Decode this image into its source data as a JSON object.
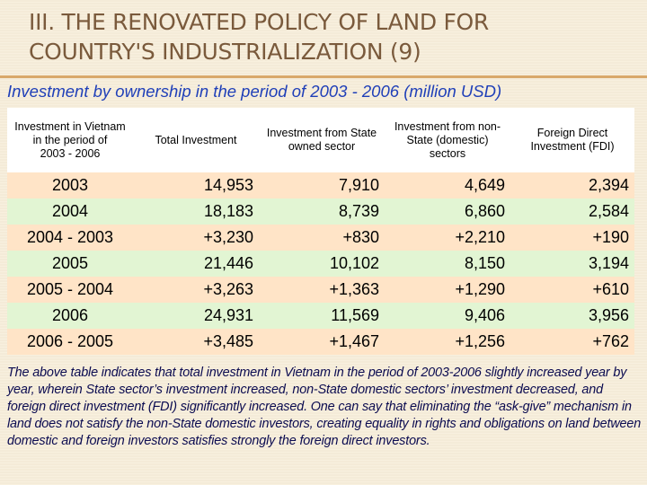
{
  "slide": {
    "title": "III. THE RENOVATED POLICY OF LAND FOR COUNTRY'S INDUSTRIALIZATION (9)",
    "subtitle": "Investment by ownership in the period of 2003 - 2006 (million USD)",
    "colors": {
      "title": "#7a5a3c",
      "rule": "#d9a86a",
      "subtitle": "#1f3fb8",
      "row_a": "#ffe4c7",
      "row_b": "#e2f5d3",
      "note": "#0b0b50"
    }
  },
  "table": {
    "headers": [
      {
        "line1": "Investment in Vietnam in the period of",
        "line2": "2003 - 2006"
      },
      {
        "line1": "Total Investment",
        "line2": ""
      },
      {
        "line1": "Investment from State owned sector",
        "line2": ""
      },
      {
        "line1": "Investment from non-State (domestic) sectors",
        "line2": ""
      },
      {
        "line1": "Foreign Direct Investment (FDI)",
        "line2": ""
      }
    ],
    "rows": [
      {
        "label": "2003",
        "total": "14,953",
        "state": "7,910",
        "nonstate": "4,649",
        "fdi": "2,394"
      },
      {
        "label": "2004",
        "total": "18,183",
        "state": "8,739",
        "nonstate": "6,860",
        "fdi": "2,584"
      },
      {
        "label": "2004 - 2003",
        "total": "+3,230",
        "state": "+830",
        "nonstate": "+2,210",
        "fdi": "+190"
      },
      {
        "label": "2005",
        "total": "21,446",
        "state": "10,102",
        "nonstate": "8,150",
        "fdi": "3,194"
      },
      {
        "label": "2005 - 2004",
        "total": "+3,263",
        "state": "+1,363",
        "nonstate": "+1,290",
        "fdi": "+610"
      },
      {
        "label": "2006",
        "total": "24,931",
        "state": "11,569",
        "nonstate": "9,406",
        "fdi": "3,956"
      },
      {
        "label": "2006 - 2005",
        "total": "+3,485",
        "state": "+1,467",
        "nonstate": "+1,256",
        "fdi": "+762"
      }
    ]
  },
  "note": "The above table indicates that total investment in Vietnam in the period of 2003-2006 slightly increased year by year, wherein State sector’s investment increased, non-State domestic sectors’ investment decreased, and foreign direct investment (FDI) significantly increased. One can say that eliminating the “ask-give” mechanism in land does not satisfy the non-State domestic investors, creating equality in rights and obligations on land between domestic and foreign investors satisfies strongly the foreign direct investors."
}
